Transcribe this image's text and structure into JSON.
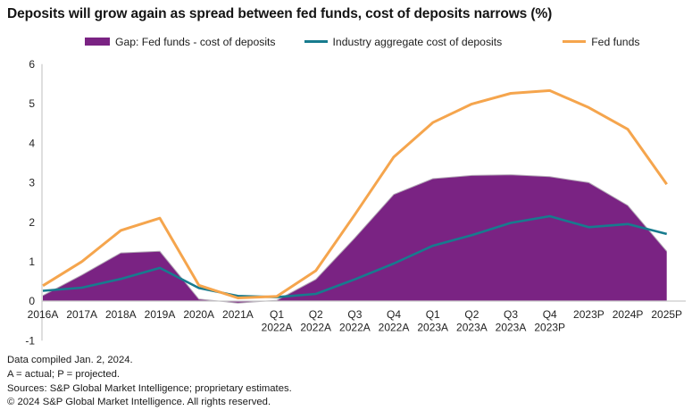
{
  "title": "Deposits will grow again as spread between fed funds, cost of deposits narrows (%)",
  "footer_lines": [
    "Data compiled Jan. 2, 2024.",
    "A = actual; P = projected.",
    "Sources: S&P Global Market Intelligence; proprietary estimates.",
    "© 2024 S&P Global Market Intelligence. All rights reserved."
  ],
  "colors": {
    "gap_area": "#7A2383",
    "gap_area_edge": "#B2A7B5",
    "cost_line": "#177B8E",
    "fed_line": "#F5A54D",
    "axis_line": "#C9C9C9",
    "text": "#1A1A1A"
  },
  "chart_data": {
    "type": "area+line",
    "title": "Deposits will grow again as spread between fed funds, cost of deposits narrows (%)",
    "unit": "%",
    "xlabel": "",
    "ylabel": "",
    "ylim": [
      -1,
      6
    ],
    "y_ticks": [
      6,
      5,
      4,
      3,
      2,
      1,
      0,
      -1
    ],
    "grid": false,
    "legend_position": "top-center",
    "categories": [
      "2016A",
      "2017A",
      "2018A",
      "2019A",
      "2020A",
      "2021A",
      "Q1\n2022A",
      "Q2\n2022A",
      "Q3\n2022A",
      "Q4\n2022A",
      "Q1\n2023A",
      "Q2\n2023A",
      "Q3\n2023A",
      "Q4\n2023P",
      "2023P",
      "2024P",
      "2025P"
    ],
    "series": [
      {
        "name": "Gap: Fed funds - cost of deposits",
        "style": "area",
        "color": "#7A2383",
        "values": [
          0.14,
          0.66,
          1.22,
          1.26,
          0.05,
          -0.05,
          0.02,
          0.55,
          1.6,
          2.7,
          3.1,
          3.18,
          3.2,
          3.15,
          3.0,
          2.42,
          1.26
        ]
      },
      {
        "name": "Industry aggregate cost of deposits",
        "style": "line",
        "color": "#177B8E",
        "values": [
          0.26,
          0.34,
          0.56,
          0.84,
          0.33,
          0.13,
          0.1,
          0.18,
          0.55,
          0.95,
          1.4,
          1.67,
          1.98,
          2.15,
          1.87,
          1.95,
          1.7
        ]
      },
      {
        "name": "Fed funds",
        "style": "line",
        "color": "#F5A54D",
        "values": [
          0.39,
          1.0,
          1.79,
          2.1,
          0.4,
          0.08,
          0.12,
          0.77,
          2.19,
          3.65,
          4.52,
          4.99,
          5.26,
          5.33,
          4.9,
          4.35,
          2.96
        ]
      }
    ]
  }
}
